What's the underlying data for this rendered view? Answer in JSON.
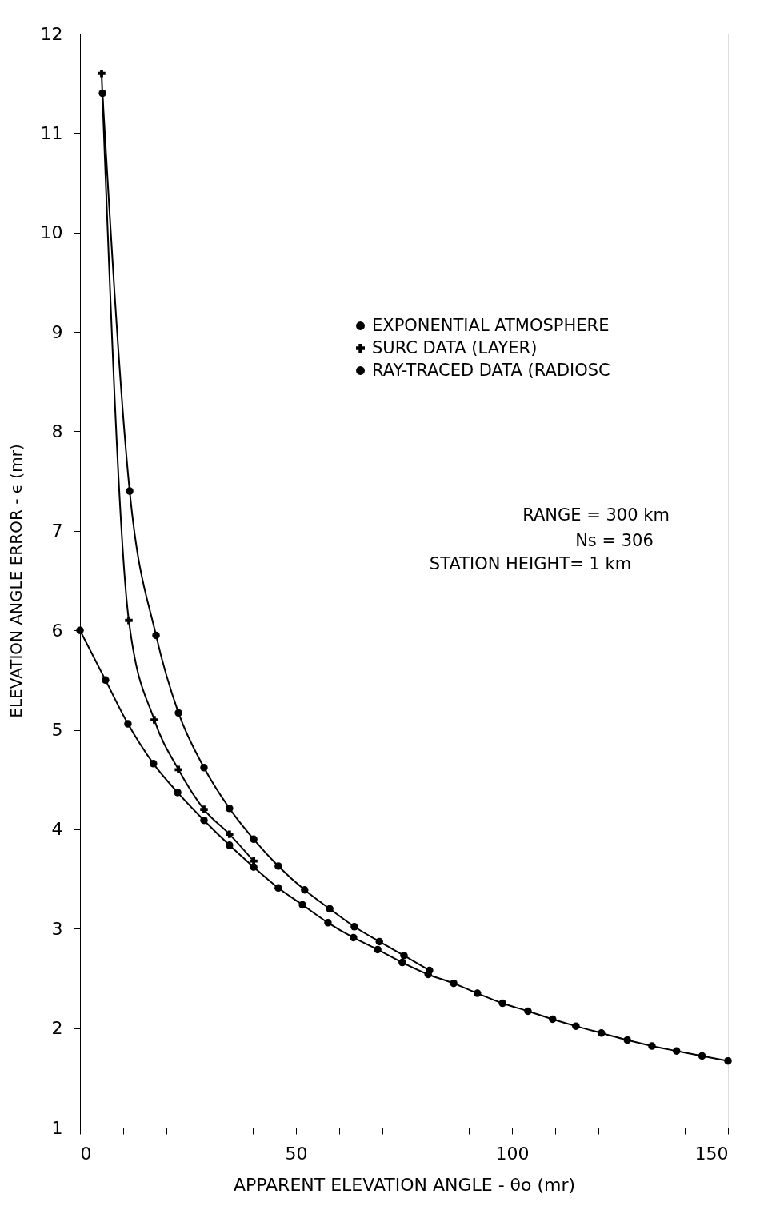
{
  "chart_data": {
    "type": "line",
    "xlabel": "APPARENT ELEVATION ANGLE - θo (mr)",
    "ylabel": "ELEVATION ANGLE ERROR - ϵ (mr)",
    "xlim": [
      0,
      150
    ],
    "ylim": [
      1,
      12
    ],
    "xticks": [
      0,
      {
        "value": 10,
        "label": null
      },
      {
        "value": 20,
        "label": null
      },
      {
        "value": 30,
        "label": null
      },
      {
        "value": 40,
        "label": null
      },
      50,
      {
        "value": 60,
        "label": null
      },
      {
        "value": 70,
        "label": null
      },
      {
        "value": 80,
        "label": null
      },
      {
        "value": 90,
        "label": null
      },
      100,
      {
        "value": 110,
        "label": null
      },
      {
        "value": 120,
        "label": null
      },
      {
        "value": 130,
        "label": null
      },
      {
        "value": 140,
        "label": null
      },
      150
    ],
    "yticks": [
      1,
      2,
      3,
      4,
      5,
      6,
      7,
      8,
      9,
      10,
      11,
      12
    ],
    "grid": false,
    "legend": "top right",
    "annotations": [
      "RANGE = 300 km",
      "Ns = 306",
      "STATION HEIGHT= 1 km"
    ],
    "series": [
      {
        "name": "EXPONENTIAL ATMOSPHERE",
        "color": "#000000",
        "marker": "circle",
        "x": [
          0,
          5.9,
          11.1,
          17,
          22.6,
          28.7,
          34.6,
          40.2,
          45.9,
          51.5,
          57.4,
          63.3,
          68.9,
          74.6,
          80.6,
          86.5,
          92,
          97.8,
          103.7,
          109.4,
          114.8,
          120.7,
          126.7,
          132.4,
          138.1,
          144,
          150
        ],
        "values": [
          6.0,
          5.5,
          5.06,
          4.66,
          4.37,
          4.09,
          3.84,
          3.62,
          3.41,
          3.24,
          3.06,
          2.91,
          2.79,
          2.66,
          2.54,
          2.45,
          2.35,
          2.25,
          2.17,
          2.09,
          2.02,
          1.95,
          1.88,
          1.82,
          1.77,
          1.72,
          1.67
        ]
      },
      {
        "name": "SURC DATA (LAYER)",
        "color": "#000000",
        "marker": "cross",
        "x": [
          5,
          11.3,
          17.2,
          22.8,
          28.7,
          34.6,
          40.2
        ],
        "values": [
          11.6,
          6.1,
          5.1,
          4.6,
          4.2,
          3.95,
          3.68
        ]
      },
      {
        "name": "RAY-TRACED DATA (RADIOSC",
        "color": "#000000",
        "marker": "circle",
        "x": [
          5.2,
          11.5,
          17.6,
          22.8,
          28.7,
          34.6,
          40.2,
          45.9,
          52,
          57.8,
          63.5,
          69.3,
          75,
          80.9
        ],
        "values": [
          11.4,
          7.4,
          5.95,
          5.17,
          4.62,
          4.21,
          3.9,
          3.63,
          3.39,
          3.2,
          3.02,
          2.87,
          2.73,
          2.58
        ]
      }
    ]
  }
}
